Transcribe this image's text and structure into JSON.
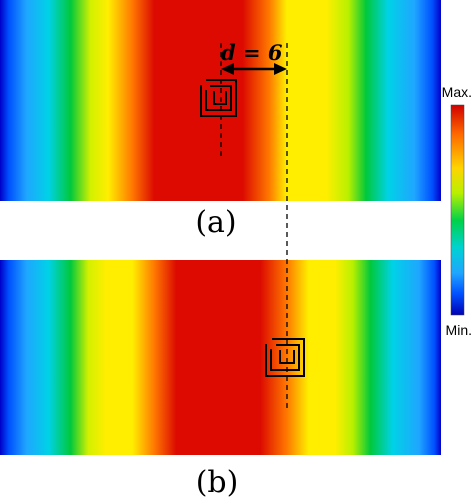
{
  "panels": [
    {
      "label": "(a)"
    },
    {
      "label": "(b)"
    }
  ],
  "annotation": {
    "d_label": "d = 6"
  },
  "colorbar": {
    "max_label": "Max.",
    "min_label": "Min.",
    "colors": [
      "#d00000",
      "#ff6a00",
      "#ffd400",
      "#b8f000",
      "#00d24a",
      "#00d2d2",
      "#1fa6ff",
      "#0050ff",
      "#0000b4"
    ]
  },
  "field_colors": {
    "blue": "#0000c8",
    "cyan": "#00d2e6",
    "green": "#00c83c",
    "yellow": "#ffee00",
    "orange": "#ff7800",
    "red": "#dc0a00"
  }
}
